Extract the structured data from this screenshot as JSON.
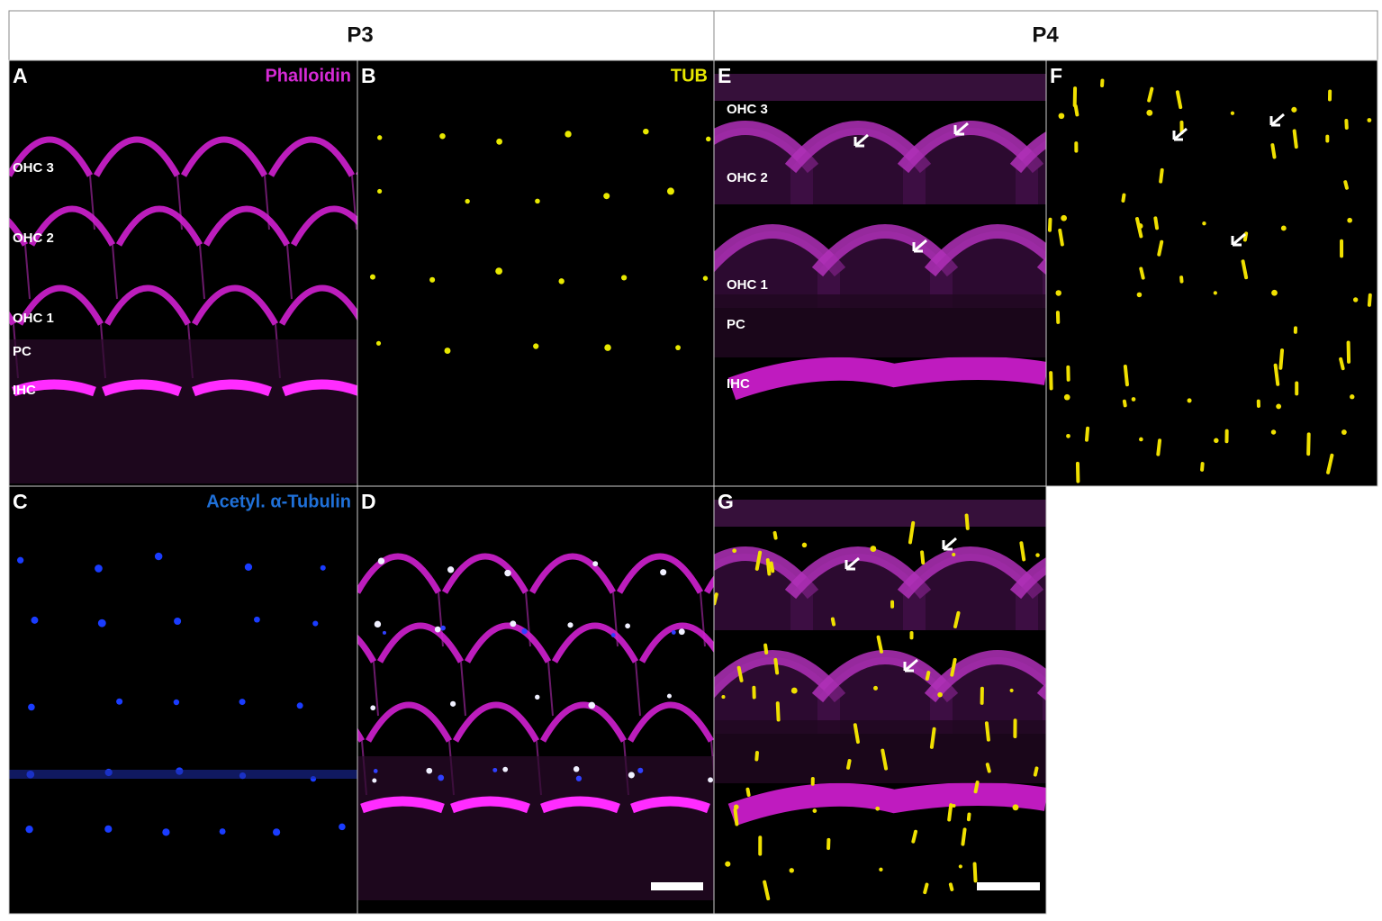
{
  "header": {
    "columns": [
      "P3",
      "P4"
    ]
  },
  "panels": [
    {
      "letter": "A",
      "label": "Phalloidin",
      "rows": [
        "OHC 3",
        "OHC 2",
        "OHC 1",
        "PC",
        "IHC"
      ]
    },
    {
      "letter": "B",
      "label": "TUB"
    },
    {
      "letter": "E",
      "rows": [
        "OHC 3",
        "OHC 2",
        "OHC 1",
        "PC",
        "IHC"
      ]
    },
    {
      "letter": "F"
    },
    {
      "letter": "C",
      "label": "Acetyl. α-Tubulin"
    },
    {
      "letter": "D"
    },
    {
      "letter": "G"
    }
  ]
}
